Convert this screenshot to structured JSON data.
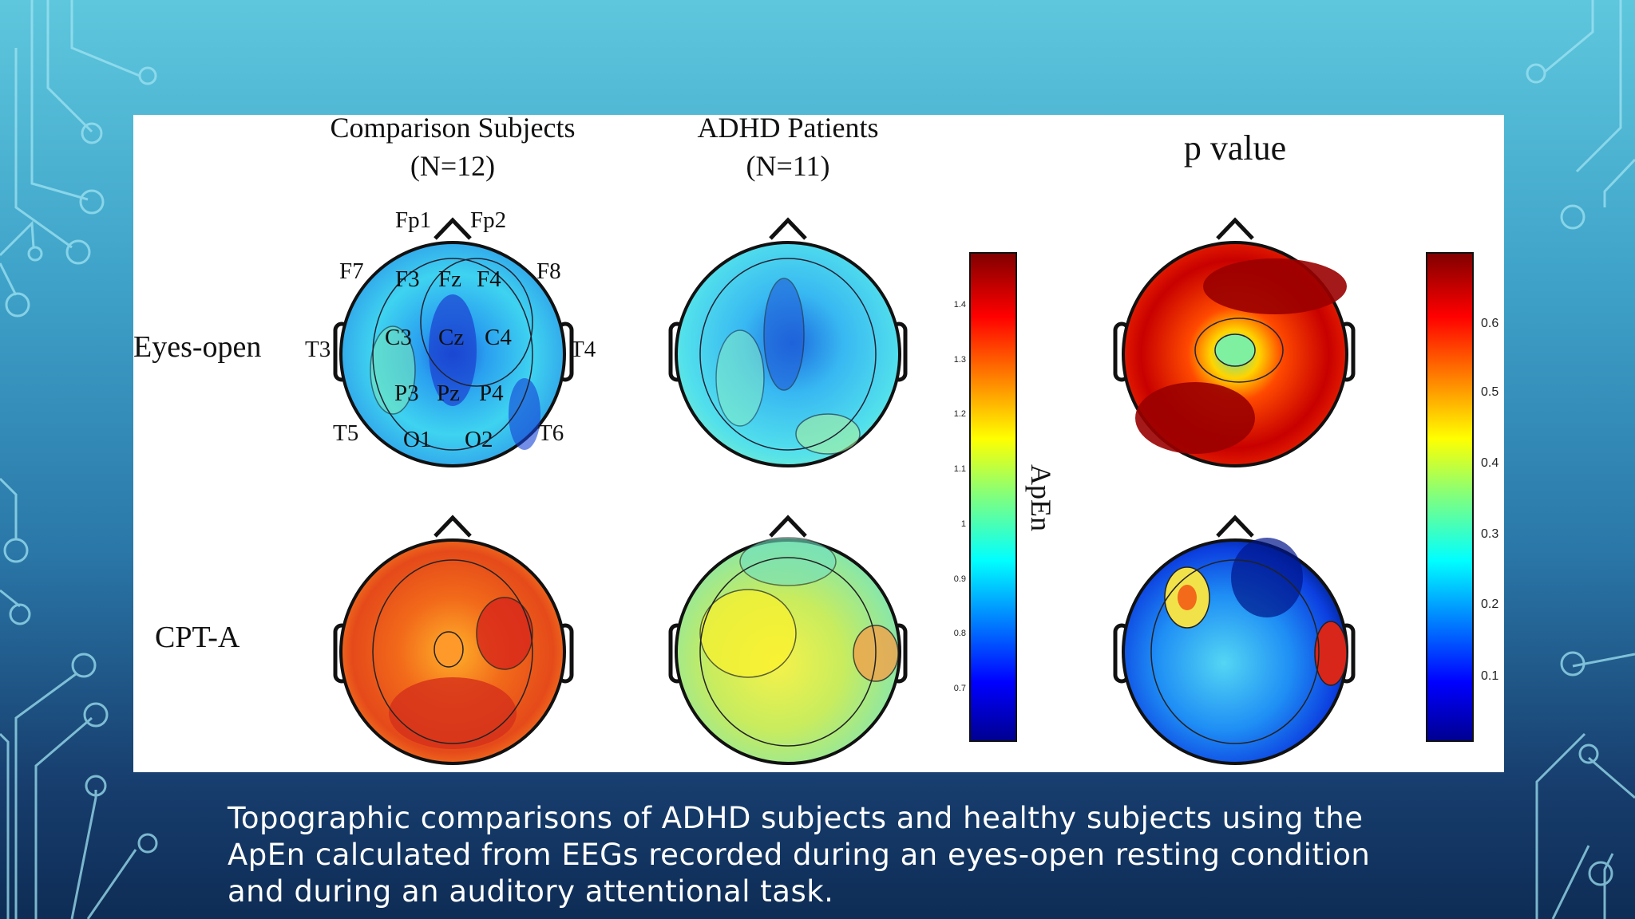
{
  "figure": {
    "columns": [
      {
        "title": "Comparison Subjects",
        "subtitle": "(N=12)"
      },
      {
        "title": "ADHD Patients",
        "subtitle": "(N=11)"
      },
      {
        "title": "p value",
        "subtitle": ""
      }
    ],
    "rows": [
      "Eyes-open",
      "CPT-A"
    ],
    "electrodes": [
      "Fp1",
      "Fp2",
      "F7",
      "F3",
      "Fz",
      "F4",
      "F8",
      "T3",
      "C3",
      "Cz",
      "C4",
      "T4",
      "P3",
      "Pz",
      "P4",
      "T5",
      "O1",
      "O2",
      "T6"
    ],
    "apen_colorbar": {
      "label": "ApEn",
      "ticks": [
        "1.4",
        "1.3",
        "1.2",
        "1.1",
        "1",
        "0.9",
        "0.8",
        "0.7"
      ]
    },
    "p_colorbar": {
      "ticks": [
        "0.6",
        "0.5",
        "0.4",
        "0.3",
        "0.2",
        "0.1"
      ]
    }
  },
  "caption": {
    "line1": "Topographic comparisons of ADHD subjects and healthy subjects using the",
    "line2": "ApEn calculated from EEGs recorded during an eyes-open resting condition",
    "line3": "and during an auditory attentional task."
  }
}
